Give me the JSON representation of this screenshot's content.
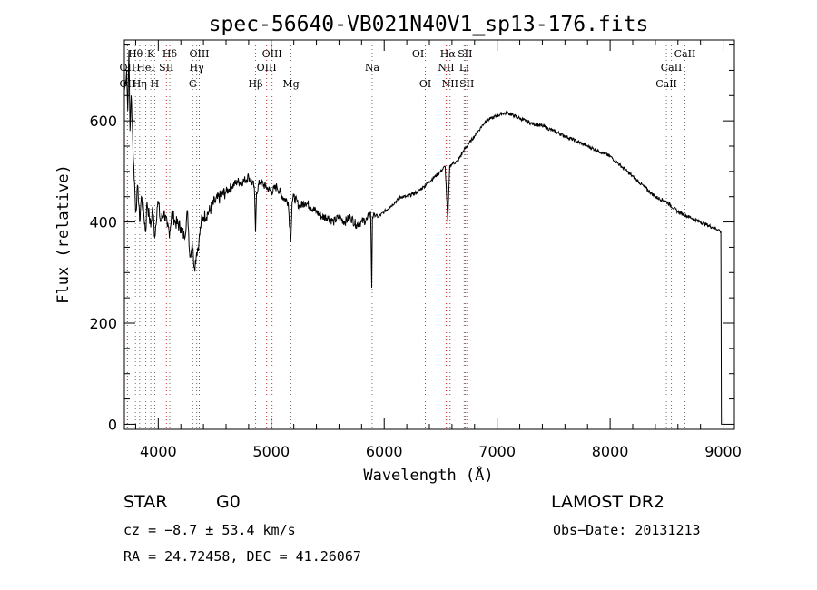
{
  "chart_data": {
    "type": "line",
    "title": "spec-56640-VB021N40V1_sp13-176.fits",
    "xlabel": "Wavelength (Å)",
    "ylabel": "Flux (relative)",
    "xlim": [
      3700,
      9100
    ],
    "ylim": [
      -10,
      760
    ],
    "xticks": [
      4000,
      5000,
      6000,
      7000,
      8000,
      9000
    ],
    "yticks": [
      0,
      200,
      400,
      600
    ],
    "grid": false,
    "series": [
      {
        "x": [
          3700,
          3720,
          3730,
          3740,
          3750,
          3760,
          3770,
          3780,
          3790,
          3800,
          3820,
          3835,
          3850,
          3870,
          3889,
          3900,
          3920,
          3933,
          3950,
          3969,
          3990,
          4000,
          4020,
          4050,
          4080,
          4102,
          4120,
          4150,
          4200,
          4230,
          4260,
          4280,
          4300,
          4320,
          4340,
          4360,
          4380,
          4400,
          4450,
          4500,
          4550,
          4600,
          4650,
          4700,
          4750,
          4800,
          4850,
          4861,
          4870,
          4900,
          4950,
          5000,
          5050,
          5100,
          5150,
          5172,
          5185,
          5200,
          5250,
          5300,
          5350,
          5400,
          5450,
          5500,
          5550,
          5600,
          5650,
          5700,
          5750,
          5800,
          5850,
          5880,
          5890,
          5896,
          5910,
          5950,
          6000,
          6050,
          6100,
          6150,
          6200,
          6250,
          6300,
          6350,
          6400,
          6450,
          6500,
          6540,
          6563,
          6580,
          6600,
          6650,
          6700,
          6750,
          6800,
          6850,
          6900,
          6950,
          7000,
          7050,
          7100,
          7150,
          7200,
          7250,
          7300,
          7400,
          7500,
          7600,
          7700,
          7800,
          7900,
          8000,
          8100,
          8200,
          8300,
          8400,
          8500,
          8600,
          8700,
          8800,
          8900,
          8960,
          8980,
          8985,
          9000
        ],
        "y": [
          660,
          700,
          620,
          740,
          580,
          650,
          600,
          520,
          480,
          420,
          470,
          400,
          450,
          420,
          380,
          440,
          410,
          390,
          430,
          370,
          430,
          440,
          400,
          420,
          390,
          380,
          420,
          400,
          390,
          370,
          420,
          330,
          360,
          310,
          340,
          360,
          400,
          410,
          420,
          440,
          450,
          460,
          470,
          480,
          480,
          490,
          470,
          380,
          460,
          480,
          470,
          460,
          470,
          450,
          440,
          360,
          440,
          450,
          430,
          440,
          430,
          420,
          410,
          410,
          400,
          410,
          400,
          410,
          395,
          400,
          405,
          420,
          270,
          410,
          415,
          410,
          420,
          430,
          440,
          450,
          450,
          455,
          460,
          470,
          480,
          490,
          500,
          510,
          400,
          510,
          515,
          520,
          540,
          555,
          570,
          585,
          600,
          605,
          610,
          615,
          615,
          610,
          605,
          600,
          595,
          590,
          580,
          570,
          560,
          550,
          540,
          530,
          510,
          490,
          470,
          450,
          440,
          420,
          410,
          400,
          390,
          385,
          380,
          0,
          0
        ]
      }
    ],
    "annotations": [
      {
        "label": "Hθ",
        "row": 0,
        "x": 3798
      },
      {
        "label": "K",
        "row": 0,
        "x": 3934
      },
      {
        "label": "Hδ",
        "row": 0,
        "x": 4102
      },
      {
        "label": "OIII",
        "row": 0,
        "x": 4363
      },
      {
        "label": "OIII",
        "row": 0,
        "x": 5007
      },
      {
        "label": "OI",
        "row": 0,
        "x": 6300
      },
      {
        "label": "Hα",
        "row": 0,
        "x": 6563
      },
      {
        "label": "SII",
        "row": 0,
        "x": 6716
      },
      {
        "label": "CaII",
        "row": 0,
        "x": 8662
      },
      {
        "label": "OII",
        "row": 1,
        "x": 3727
      },
      {
        "label": "HeI",
        "row": 1,
        "x": 3889
      },
      {
        "label": "SII",
        "row": 1,
        "x": 4072
      },
      {
        "label": "Hγ",
        "row": 1,
        "x": 4340
      },
      {
        "label": "OIII",
        "row": 1,
        "x": 4959
      },
      {
        "label": "Na",
        "row": 1,
        "x": 5893
      },
      {
        "label": "NII",
        "row": 1,
        "x": 6548
      },
      {
        "label": "Li",
        "row": 1,
        "x": 6708
      },
      {
        "label": "CaII",
        "row": 1,
        "x": 8542
      },
      {
        "label": "OII",
        "row": 2,
        "x": 3727
      },
      {
        "label": "Hη",
        "row": 2,
        "x": 3835
      },
      {
        "label": "H",
        "row": 2,
        "x": 3969
      },
      {
        "label": "G",
        "row": 2,
        "x": 4305
      },
      {
        "label": "Hβ",
        "row": 2,
        "x": 4861
      },
      {
        "label": "Mg",
        "row": 2,
        "x": 5175
      },
      {
        "label": "OI",
        "row": 2,
        "x": 6364
      },
      {
        "label": "NII",
        "row": 2,
        "x": 6583
      },
      {
        "label": "SII",
        "row": 2,
        "x": 6731
      },
      {
        "label": "CaII",
        "row": 2,
        "x": 8498
      }
    ],
    "line_colors": {
      "emission": "#d03030",
      "absorption": "#707070",
      "spectrum": "#000000"
    }
  },
  "footer": {
    "class_label": "STAR",
    "subclass": "G0",
    "survey": "LAMOST DR2",
    "cz": "cz = −8.7 ± 53.4 km/s",
    "obs_date": "Obs−Date: 20131213",
    "coords": "RA =  24.72458, DEC =  41.26067"
  }
}
